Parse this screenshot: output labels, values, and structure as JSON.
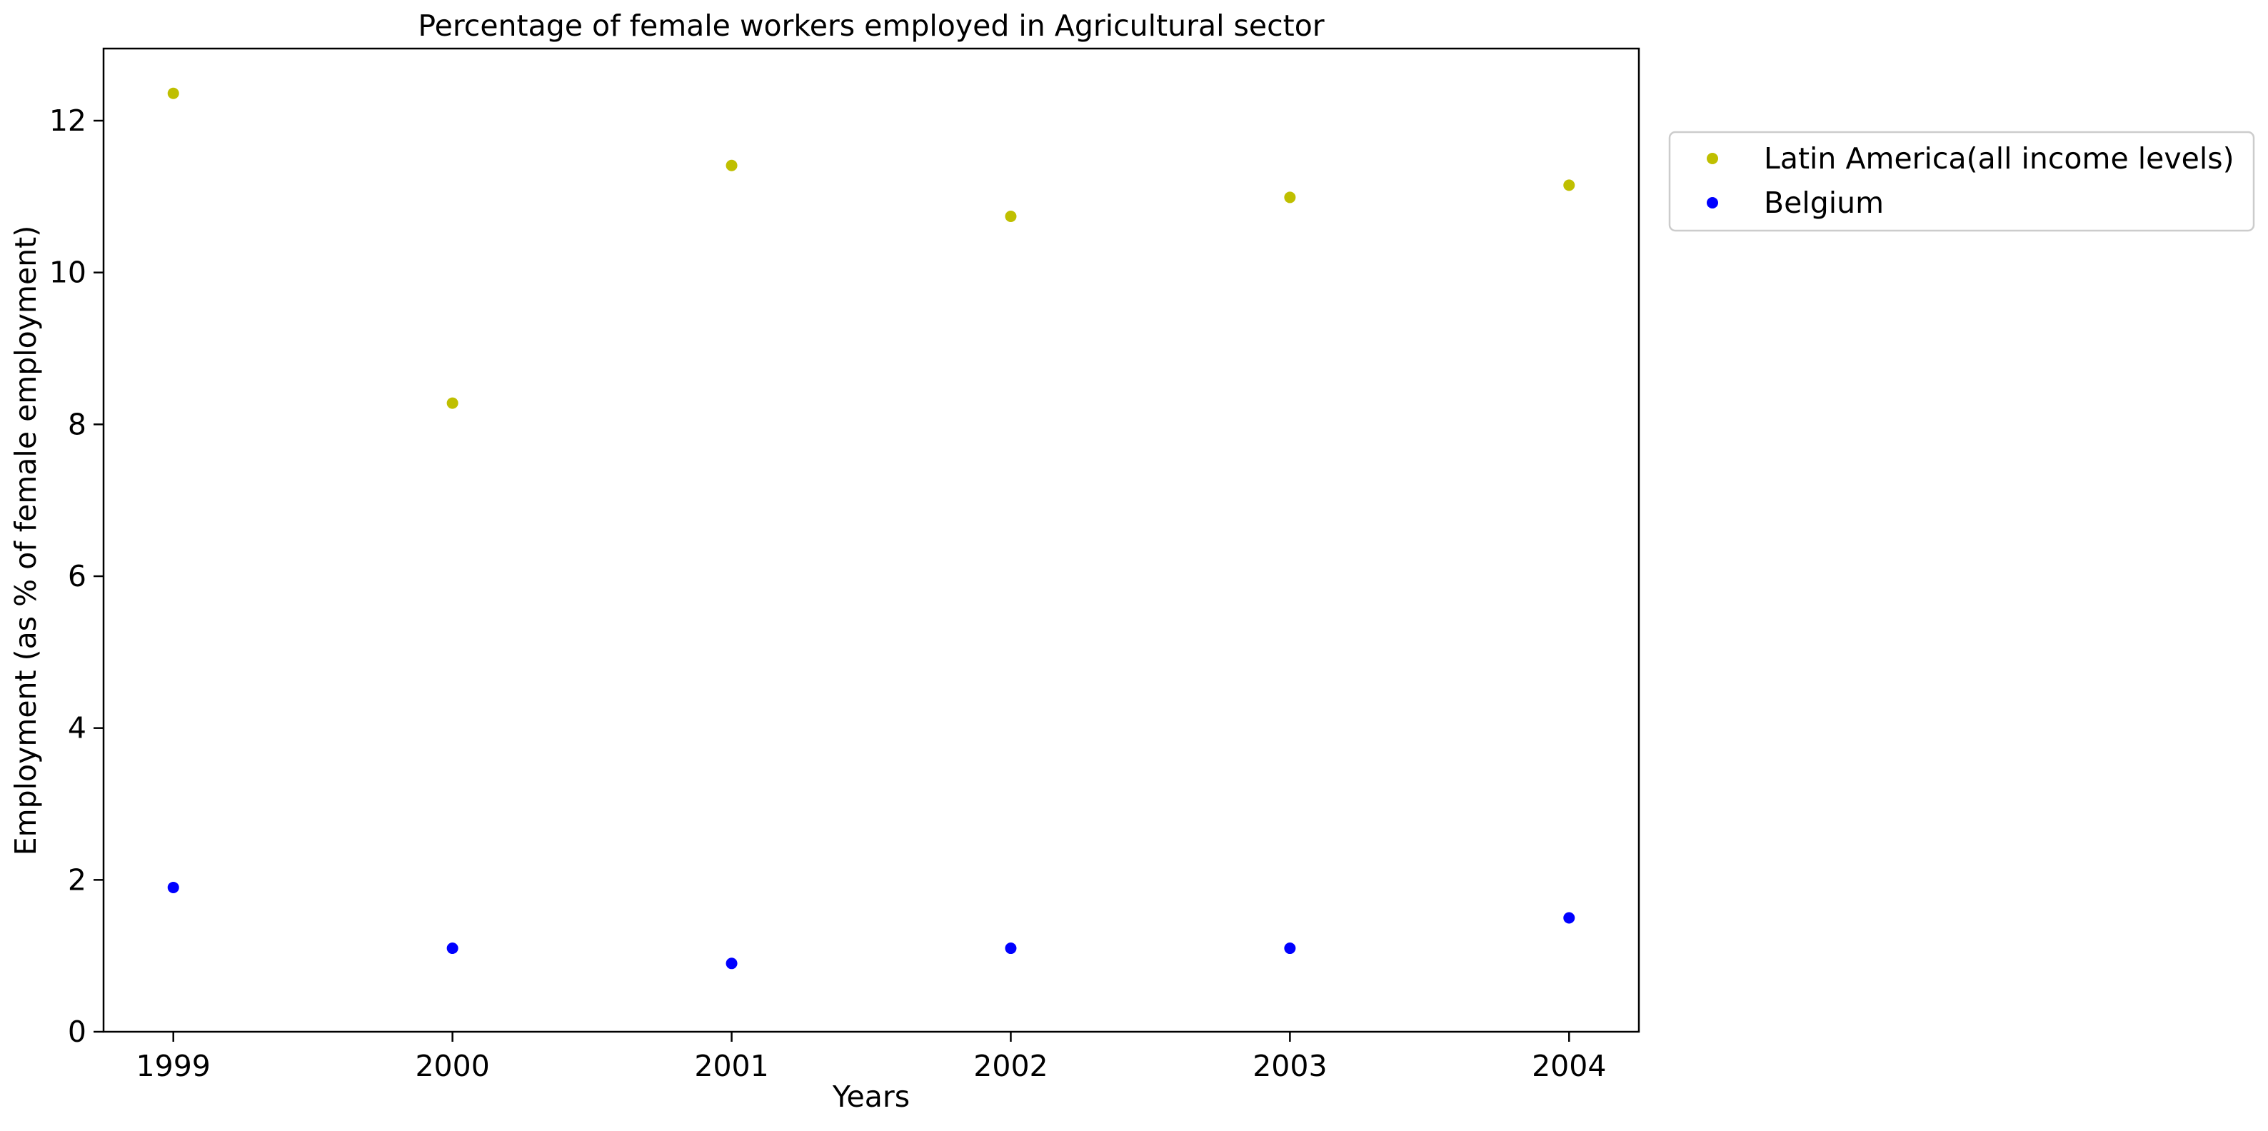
{
  "chart_data": {
    "type": "scatter",
    "title": "Percentage of female workers employed in Agricultural sector",
    "xlabel": "Years",
    "ylabel": "Employment (as % of female employment)",
    "x": [
      1999,
      2000,
      2001,
      2002,
      2003,
      2004
    ],
    "x_ticks": [
      "1999",
      "2000",
      "2001",
      "2002",
      "2003",
      "2004"
    ],
    "y_ticks": [
      "0",
      "2",
      "4",
      "6",
      "8",
      "10",
      "12"
    ],
    "xlim": [
      1998.75,
      2004.25
    ],
    "ylim": [
      0,
      12.95
    ],
    "grid": false,
    "legend_position": "outside-top-right",
    "series": [
      {
        "name": "Latin America(all income levels)",
        "color": "#bfbf00",
        "values": [
          12.36,
          8.28,
          11.41,
          10.74,
          10.99,
          11.15
        ]
      },
      {
        "name": "Belgium",
        "color": "#0000ff",
        "values": [
          1.9,
          1.1,
          0.9,
          1.1,
          1.1,
          1.5
        ]
      }
    ]
  }
}
